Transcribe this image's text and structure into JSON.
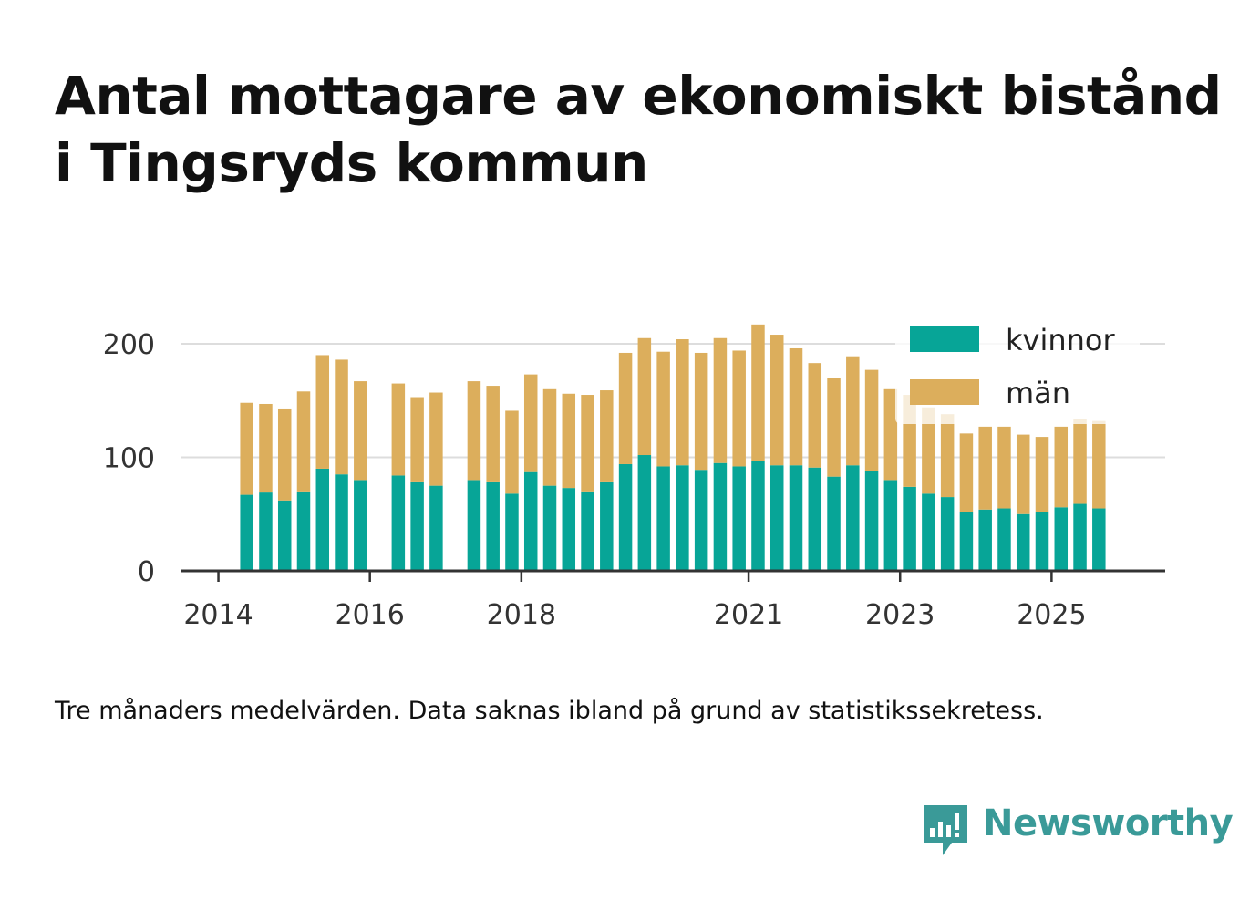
{
  "title": {
    "line1": "Antal mottagare av ekonomiskt bistånd",
    "line2": "i Tingsryds kommun"
  },
  "note": "Tre månaders medelvärden. Data saknas ibland på grund av statistikssekretess.",
  "brand": {
    "name": "Newsworthy",
    "icon": "newsworthy-logo-icon",
    "color": "#3a9a98"
  },
  "chart_data": {
    "type": "bar",
    "stacked": true,
    "x_unit": "quarter",
    "xlim": [
      "2013-Q3",
      "2026-Q2"
    ],
    "xticks": [
      "2014",
      "2016",
      "2018",
      "2021",
      "2023",
      "2025"
    ],
    "ylim": [
      0,
      230
    ],
    "yticks": [
      0,
      100,
      200
    ],
    "grid": true,
    "legend_position": "top-right",
    "categories": [
      "2014-Q2",
      "2014-Q3",
      "2014-Q4",
      "2015-Q1",
      "2015-Q2",
      "2015-Q3",
      "2015-Q4",
      "2016-Q1",
      "2016-Q2",
      "2016-Q3",
      "2016-Q4",
      "2017-Q1",
      "2017-Q2",
      "2017-Q3",
      "2017-Q4",
      "2018-Q1",
      "2018-Q2",
      "2018-Q3",
      "2018-Q4",
      "2019-Q1",
      "2019-Q2",
      "2019-Q3",
      "2019-Q4",
      "2020-Q1",
      "2020-Q2",
      "2020-Q3",
      "2020-Q4",
      "2021-Q1",
      "2021-Q2",
      "2021-Q3",
      "2021-Q4",
      "2022-Q1",
      "2022-Q2",
      "2022-Q3",
      "2022-Q4",
      "2023-Q1",
      "2023-Q2",
      "2023-Q3",
      "2023-Q4",
      "2024-Q1",
      "2024-Q2",
      "2024-Q3",
      "2024-Q4",
      "2025-Q1",
      "2025-Q2",
      "2025-Q3",
      "2025-Q4"
    ],
    "series": [
      {
        "name": "kvinnor",
        "color": "#07a597",
        "values": [
          67,
          69,
          62,
          70,
          90,
          85,
          80,
          null,
          84,
          78,
          75,
          null,
          80,
          78,
          68,
          87,
          75,
          73,
          70,
          78,
          94,
          102,
          92,
          93,
          89,
          95,
          92,
          97,
          93,
          93,
          91,
          83,
          93,
          88,
          80,
          74,
          68,
          65,
          52,
          54,
          55,
          50,
          52,
          56,
          59,
          55,
          null
        ]
      },
      {
        "name": "män",
        "color": "#dcae5c",
        "values": [
          81,
          78,
          81,
          88,
          100,
          101,
          87,
          null,
          81,
          75,
          82,
          null,
          87,
          85,
          73,
          86,
          85,
          83,
          85,
          81,
          98,
          103,
          101,
          111,
          103,
          110,
          102,
          120,
          115,
          103,
          92,
          87,
          96,
          89,
          80,
          81,
          76,
          73,
          69,
          73,
          72,
          70,
          66,
          71,
          75,
          77,
          null
        ]
      }
    ]
  }
}
